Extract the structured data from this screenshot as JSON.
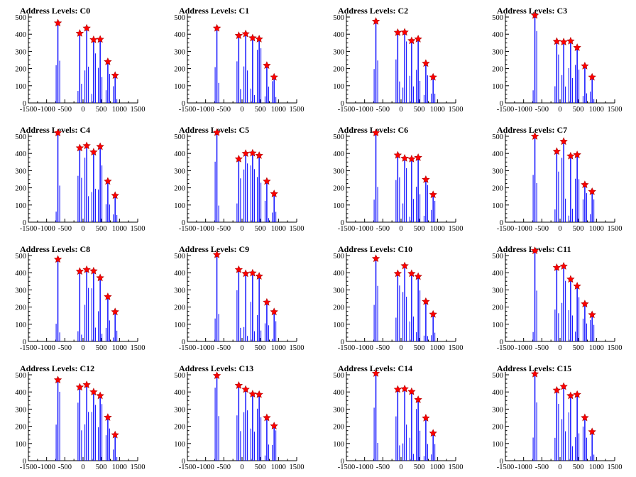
{
  "chart_data": [
    {
      "type": "bar",
      "title": "Address Levels: C0",
      "xlim": [
        -1500,
        1500
      ],
      "ylim": [
        0,
        500
      ],
      "x_ticks": [
        "-1500",
        "-1000",
        "-500",
        "0",
        "500",
        "1000",
        "1500"
      ],
      "y_ticks": [
        "0",
        "100",
        "200",
        "300",
        "400",
        "500"
      ],
      "peaks": [
        {
          "x": -690,
          "y": 465
        },
        {
          "x": -90,
          "y": 405
        },
        {
          "x": 100,
          "y": 435
        },
        {
          "x": 290,
          "y": 368
        },
        {
          "x": 470,
          "y": 370
        },
        {
          "x": 680,
          "y": 240
        },
        {
          "x": 880,
          "y": 160
        }
      ]
    },
    {
      "type": "bar",
      "title": "Address Levels: C1",
      "xlim": [
        -1500,
        1500
      ],
      "ylim": [
        0,
        500
      ],
      "x_ticks": [
        "-1500",
        "-1000",
        "-500",
        "0",
        "500",
        "1000",
        "1500"
      ],
      "y_ticks": [
        "0",
        "100",
        "200",
        "300",
        "400",
        "500"
      ],
      "peaks": [
        {
          "x": -690,
          "y": 435
        },
        {
          "x": -90,
          "y": 392
        },
        {
          "x": 100,
          "y": 402
        },
        {
          "x": 290,
          "y": 378
        },
        {
          "x": 470,
          "y": 372
        },
        {
          "x": 680,
          "y": 218
        },
        {
          "x": 880,
          "y": 150
        }
      ]
    },
    {
      "type": "bar",
      "title": "Address Levels: C2",
      "xlim": [
        -1500,
        1500
      ],
      "ylim": [
        0,
        500
      ],
      "x_ticks": [
        "-1500",
        "-1000",
        "-500",
        "0",
        "500",
        "1000",
        "1500"
      ],
      "y_ticks": [
        "0",
        "100",
        "200",
        "300",
        "400",
        "500"
      ],
      "peaks": [
        {
          "x": -690,
          "y": 475
        },
        {
          "x": -90,
          "y": 410
        },
        {
          "x": 100,
          "y": 412
        },
        {
          "x": 290,
          "y": 362
        },
        {
          "x": 470,
          "y": 372
        },
        {
          "x": 680,
          "y": 230
        },
        {
          "x": 880,
          "y": 150
        }
      ]
    },
    {
      "type": "bar",
      "title": "Address Levels: C3",
      "xlim": [
        -1500,
        1500
      ],
      "ylim": [
        0,
        500
      ],
      "x_ticks": [
        "-1500",
        "-1000",
        "-500",
        "0",
        "500",
        "1000",
        "1500"
      ],
      "y_ticks": [
        "0",
        "100",
        "200",
        "300",
        "400",
        "500"
      ],
      "peaks": [
        {
          "x": -690,
          "y": 510
        },
        {
          "x": -90,
          "y": 358
        },
        {
          "x": 100,
          "y": 355
        },
        {
          "x": 290,
          "y": 360
        },
        {
          "x": 470,
          "y": 322
        },
        {
          "x": 680,
          "y": 215
        },
        {
          "x": 880,
          "y": 150
        }
      ]
    },
    {
      "type": "bar",
      "title": "Address Levels: C4",
      "xlim": [
        -1500,
        1500
      ],
      "ylim": [
        0,
        500
      ],
      "x_ticks": [
        "-1500",
        "-1000",
        "-500",
        "0",
        "500",
        "1000",
        "1500"
      ],
      "y_ticks": [
        "0",
        "100",
        "200",
        "300",
        "400",
        "500"
      ],
      "peaks": [
        {
          "x": -690,
          "y": 520
        },
        {
          "x": -90,
          "y": 432
        },
        {
          "x": 100,
          "y": 445
        },
        {
          "x": 290,
          "y": 408
        },
        {
          "x": 470,
          "y": 440
        },
        {
          "x": 680,
          "y": 238
        },
        {
          "x": 880,
          "y": 155
        }
      ]
    },
    {
      "type": "bar",
      "title": "Address Levels: C5",
      "xlim": [
        -1500,
        1500
      ],
      "ylim": [
        0,
        500
      ],
      "x_ticks": [
        "-1500",
        "-1000",
        "-500",
        "0",
        "500",
        "1000",
        "1500"
      ],
      "y_ticks": [
        "0",
        "100",
        "200",
        "300",
        "400",
        "500"
      ],
      "peaks": [
        {
          "x": -690,
          "y": 522
        },
        {
          "x": -90,
          "y": 368
        },
        {
          "x": 100,
          "y": 400
        },
        {
          "x": 290,
          "y": 402
        },
        {
          "x": 470,
          "y": 388
        },
        {
          "x": 680,
          "y": 238
        },
        {
          "x": 880,
          "y": 165
        }
      ]
    },
    {
      "type": "bar",
      "title": "Address Levels: C6",
      "xlim": [
        -1500,
        1500
      ],
      "ylim": [
        0,
        500
      ],
      "x_ticks": [
        "-1500",
        "-1000",
        "-500",
        "0",
        "500",
        "1000",
        "1500"
      ],
      "y_ticks": [
        "0",
        "100",
        "200",
        "300",
        "400",
        "500"
      ],
      "peaks": [
        {
          "x": -690,
          "y": 520
        },
        {
          "x": -90,
          "y": 390
        },
        {
          "x": 100,
          "y": 372
        },
        {
          "x": 290,
          "y": 368
        },
        {
          "x": 470,
          "y": 376
        },
        {
          "x": 680,
          "y": 248
        },
        {
          "x": 880,
          "y": 160
        }
      ]
    },
    {
      "type": "bar",
      "title": "Address Levels: C7",
      "xlim": [
        -1500,
        1500
      ],
      "ylim": [
        0,
        500
      ],
      "x_ticks": [
        "-1500",
        "-1000",
        "-500",
        "0",
        "500",
        "1000",
        "1500"
      ],
      "y_ticks": [
        "0",
        "100",
        "200",
        "300",
        "400",
        "500"
      ],
      "peaks": [
        {
          "x": -690,
          "y": 500
        },
        {
          "x": -90,
          "y": 412
        },
        {
          "x": 100,
          "y": 470
        },
        {
          "x": 290,
          "y": 385
        },
        {
          "x": 470,
          "y": 392
        },
        {
          "x": 680,
          "y": 218
        },
        {
          "x": 880,
          "y": 178
        }
      ]
    },
    {
      "type": "bar",
      "title": "Address Levels: C8",
      "xlim": [
        -1500,
        1500
      ],
      "ylim": [
        0,
        500
      ],
      "x_ticks": [
        "-1500",
        "-1000",
        "-500",
        "0",
        "500",
        "1000",
        "1500"
      ],
      "y_ticks": [
        "0",
        "100",
        "200",
        "300",
        "400",
        "500"
      ],
      "peaks": [
        {
          "x": -690,
          "y": 478
        },
        {
          "x": -90,
          "y": 408
        },
        {
          "x": 100,
          "y": 418
        },
        {
          "x": 290,
          "y": 410
        },
        {
          "x": 470,
          "y": 370
        },
        {
          "x": 680,
          "y": 260
        },
        {
          "x": 880,
          "y": 172
        }
      ]
    },
    {
      "type": "bar",
      "title": "Address Levels: C9",
      "xlim": [
        -1500,
        1500
      ],
      "ylim": [
        0,
        500
      ],
      "x_ticks": [
        "-1500",
        "-1000",
        "-500",
        "0",
        "500",
        "1000",
        "1500"
      ],
      "y_ticks": [
        "0",
        "100",
        "200",
        "300",
        "400",
        "500"
      ],
      "peaks": [
        {
          "x": -690,
          "y": 505
        },
        {
          "x": -90,
          "y": 418
        },
        {
          "x": 100,
          "y": 395
        },
        {
          "x": 290,
          "y": 398
        },
        {
          "x": 470,
          "y": 380
        },
        {
          "x": 680,
          "y": 228
        },
        {
          "x": 880,
          "y": 172
        }
      ]
    },
    {
      "type": "bar",
      "title": "Address Levels: C10",
      "xlim": [
        -1500,
        1500
      ],
      "ylim": [
        0,
        500
      ],
      "x_ticks": [
        "-1500",
        "-1000",
        "-500",
        "0",
        "500",
        "1000",
        "1500"
      ],
      "y_ticks": [
        "0",
        "100",
        "200",
        "300",
        "400",
        "500"
      ],
      "peaks": [
        {
          "x": -690,
          "y": 482
        },
        {
          "x": -90,
          "y": 395
        },
        {
          "x": 100,
          "y": 440
        },
        {
          "x": 290,
          "y": 395
        },
        {
          "x": 470,
          "y": 378
        },
        {
          "x": 680,
          "y": 232
        },
        {
          "x": 880,
          "y": 158
        }
      ]
    },
    {
      "type": "bar",
      "title": "Address Levels: C11",
      "xlim": [
        -1500,
        1500
      ],
      "ylim": [
        0,
        500
      ],
      "x_ticks": [
        "-1500",
        "-1000",
        "-500",
        "0",
        "500",
        "1000",
        "1500"
      ],
      "y_ticks": [
        "0",
        "100",
        "200",
        "300",
        "400",
        "500"
      ],
      "peaks": [
        {
          "x": -690,
          "y": 528
        },
        {
          "x": -90,
          "y": 430
        },
        {
          "x": 100,
          "y": 438
        },
        {
          "x": 290,
          "y": 362
        },
        {
          "x": 470,
          "y": 322
        },
        {
          "x": 680,
          "y": 218
        },
        {
          "x": 880,
          "y": 155
        }
      ]
    },
    {
      "type": "bar",
      "title": "Address Levels: C12",
      "xlim": [
        -1500,
        1500
      ],
      "ylim": [
        0,
        500
      ],
      "x_ticks": [
        "-1500",
        "-1000",
        "-500",
        "0",
        "500",
        "1000",
        "1500"
      ],
      "y_ticks": [
        "0",
        "100",
        "200",
        "300",
        "400",
        "500"
      ],
      "peaks": [
        {
          "x": -690,
          "y": 470
        },
        {
          "x": -90,
          "y": 428
        },
        {
          "x": 100,
          "y": 442
        },
        {
          "x": 290,
          "y": 400
        },
        {
          "x": 470,
          "y": 378
        },
        {
          "x": 680,
          "y": 252
        },
        {
          "x": 880,
          "y": 150
        }
      ]
    },
    {
      "type": "bar",
      "title": "Address Levels: C13",
      "xlim": [
        -1500,
        1500
      ],
      "ylim": [
        0,
        500
      ],
      "x_ticks": [
        "-1500",
        "-1000",
        "-500",
        "0",
        "500",
        "1000",
        "1500"
      ],
      "y_ticks": [
        "0",
        "100",
        "200",
        "300",
        "400",
        "500"
      ],
      "peaks": [
        {
          "x": -690,
          "y": 495
        },
        {
          "x": -90,
          "y": 438
        },
        {
          "x": 100,
          "y": 415
        },
        {
          "x": 290,
          "y": 388
        },
        {
          "x": 470,
          "y": 385
        },
        {
          "x": 680,
          "y": 250
        },
        {
          "x": 880,
          "y": 202
        }
      ]
    },
    {
      "type": "bar",
      "title": "Address Levels: C14",
      "xlim": [
        -1500,
        1500
      ],
      "ylim": [
        0,
        500
      ],
      "x_ticks": [
        "-1500",
        "-1000",
        "-500",
        "0",
        "500",
        "1000",
        "1500"
      ],
      "y_ticks": [
        "0",
        "100",
        "200",
        "300",
        "400",
        "500"
      ],
      "peaks": [
        {
          "x": -690,
          "y": 508
        },
        {
          "x": -90,
          "y": 415
        },
        {
          "x": 100,
          "y": 418
        },
        {
          "x": 290,
          "y": 402
        },
        {
          "x": 470,
          "y": 355
        },
        {
          "x": 680,
          "y": 248
        },
        {
          "x": 880,
          "y": 160
        }
      ]
    },
    {
      "type": "bar",
      "title": "Address Levels: C15",
      "xlim": [
        -1500,
        1500
      ],
      "ylim": [
        0,
        500
      ],
      "x_ticks": [
        "-1500",
        "-1000",
        "-500",
        "0",
        "500",
        "1000",
        "1500"
      ],
      "y_ticks": [
        "0",
        "100",
        "200",
        "300",
        "400",
        "500"
      ],
      "peaks": [
        {
          "x": -690,
          "y": 505
        },
        {
          "x": -90,
          "y": 410
        },
        {
          "x": 100,
          "y": 432
        },
        {
          "x": 290,
          "y": 378
        },
        {
          "x": 470,
          "y": 385
        },
        {
          "x": 680,
          "y": 250
        },
        {
          "x": 880,
          "y": 168
        }
      ]
    }
  ],
  "colors": {
    "bar": "#0000ff",
    "marker": "#ff0000",
    "marker_stroke": "#aa0000",
    "axis": "#000000"
  }
}
